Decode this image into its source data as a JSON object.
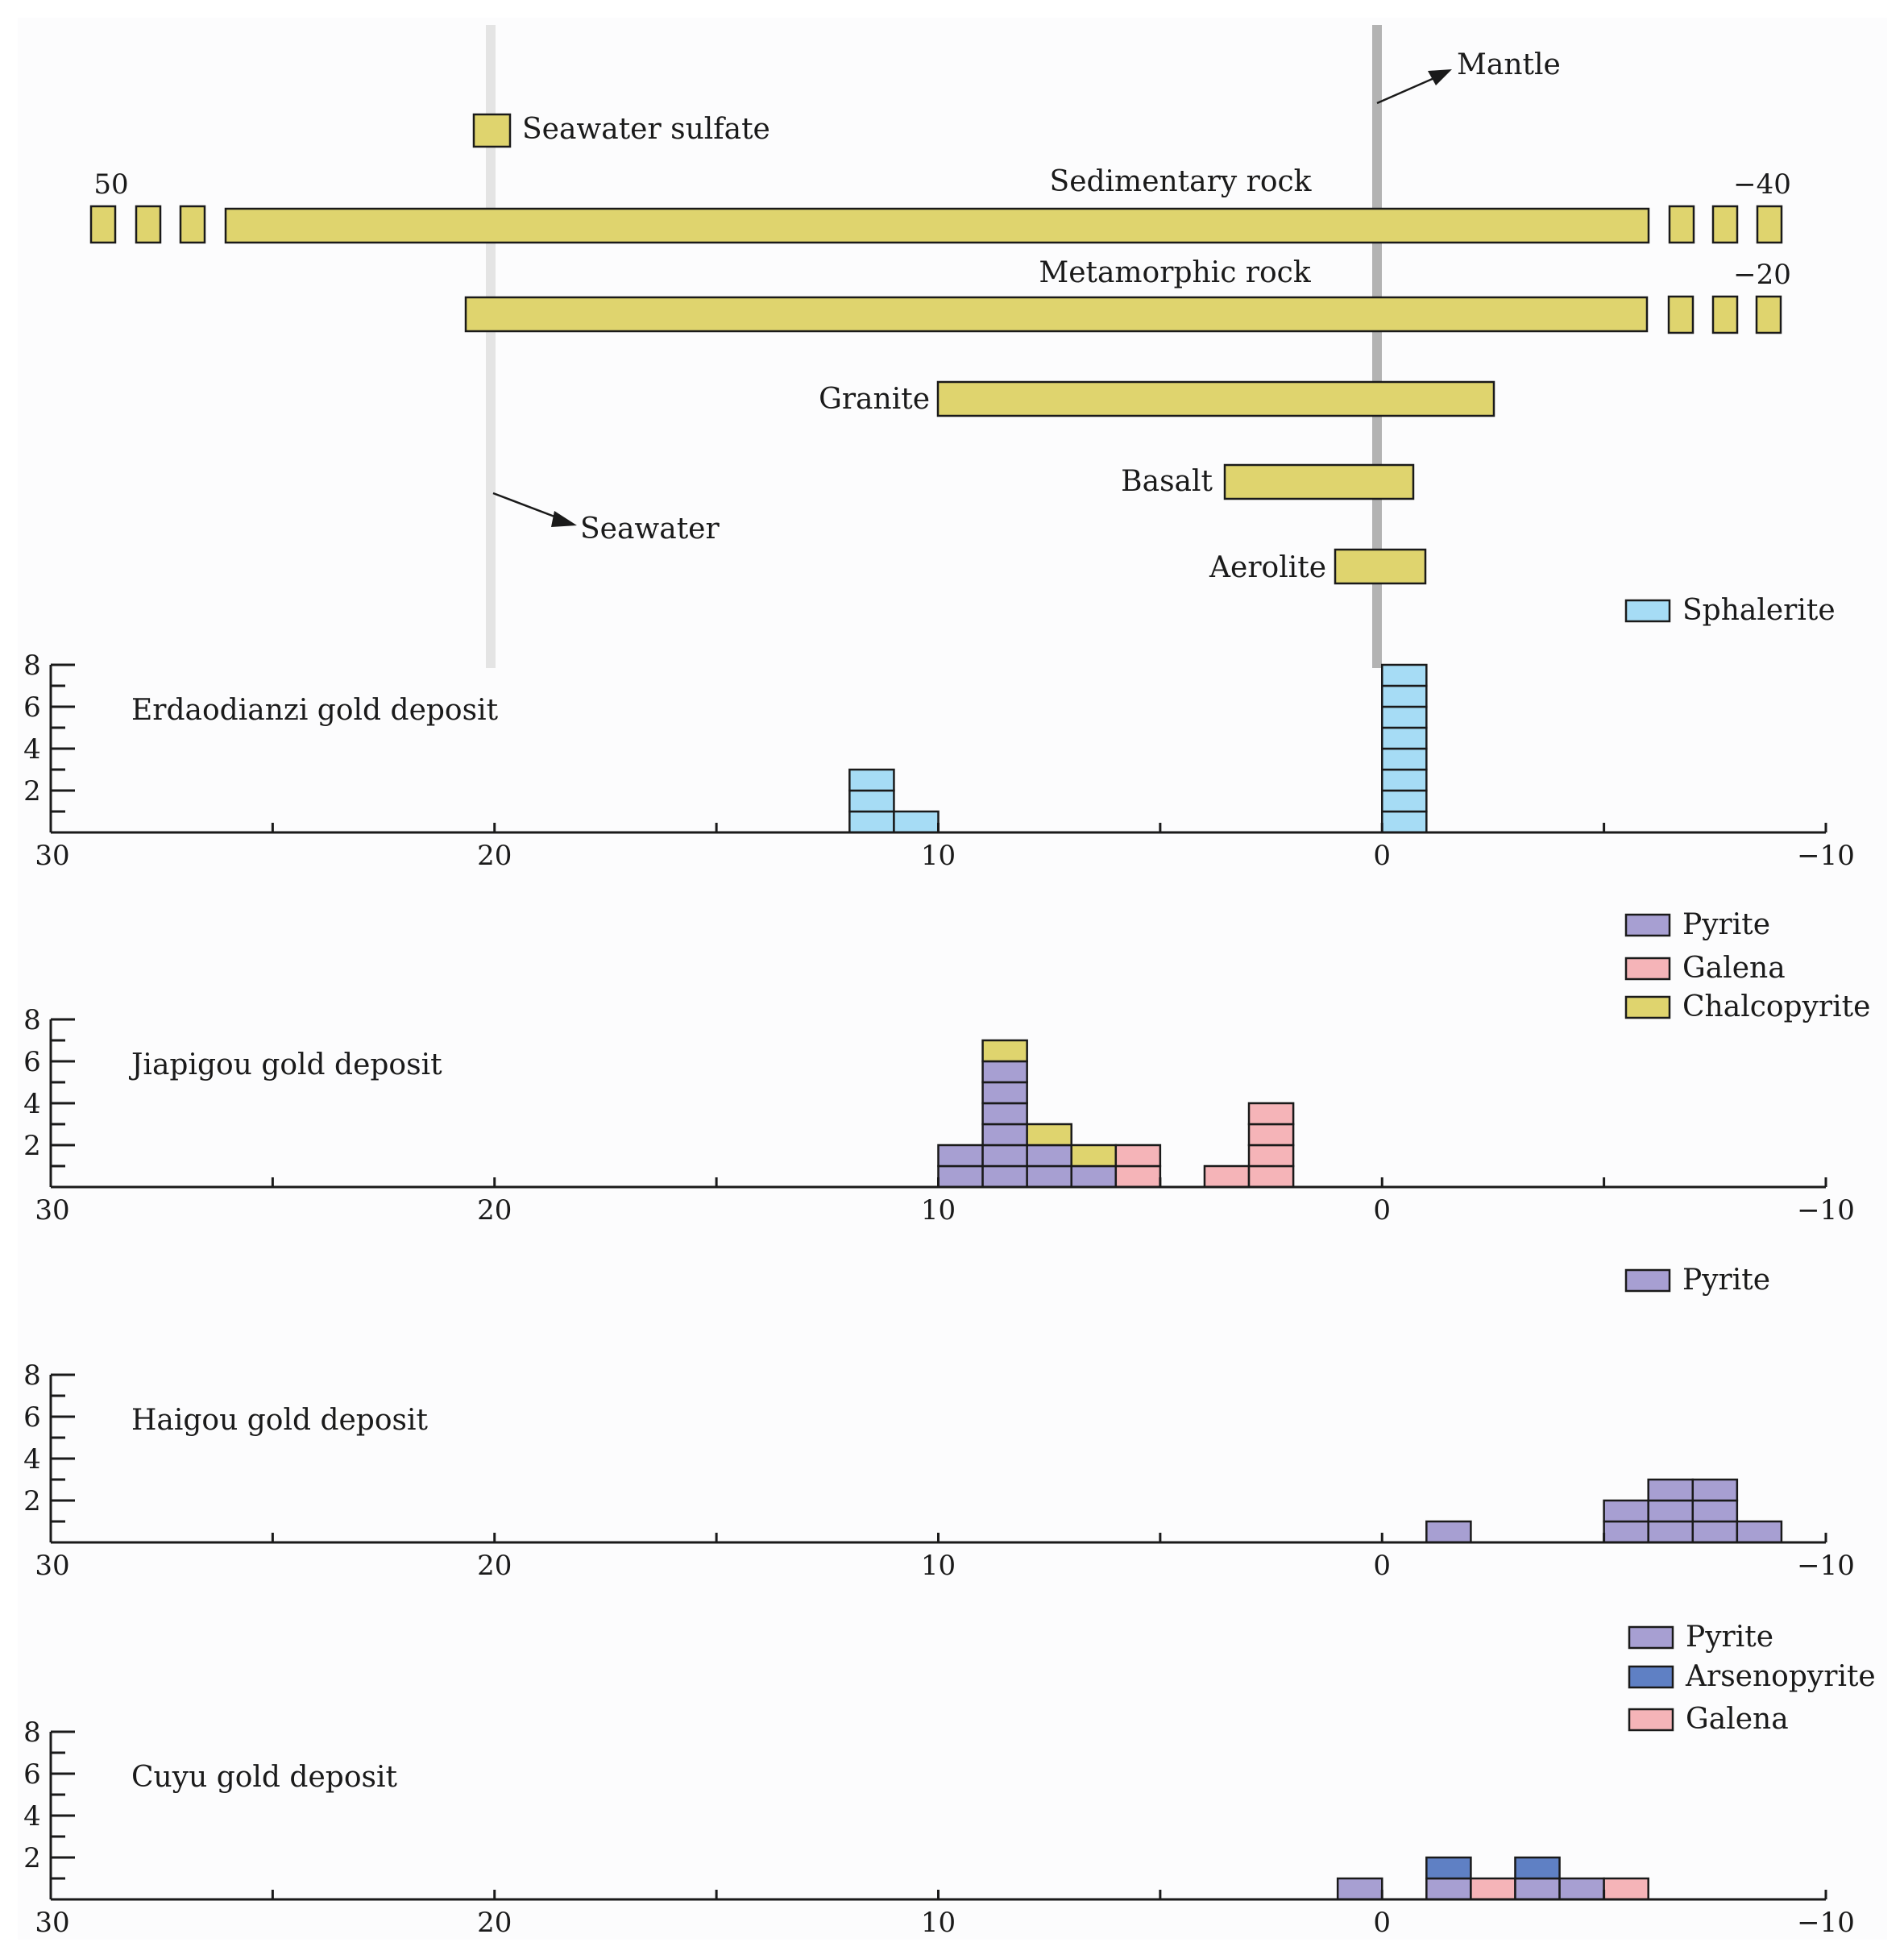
{
  "colors": {
    "background": "#fcfcfd",
    "source_bar": "#dfd46e",
    "sphalerite": "#a6dcf5",
    "pyrite": "#a79fd2",
    "galena": "#f5b4b8",
    "chalcopyrite": "#dfd46e",
    "arsenopyrite": "#5f80c4",
    "mantle_line": "#b3b3b3",
    "seawater_line": "#e4e4e4"
  },
  "reference_lines": {
    "mantle": {
      "label": "Mantle",
      "value": 0
    },
    "seawater": {
      "label": "Seawater",
      "value": 20
    }
  },
  "sources": {
    "seawater_sulfate": {
      "label": "Seawater sulfate"
    },
    "sedimentary": {
      "label": "Sedimentary rock",
      "left_value": "50",
      "right_value": "−40"
    },
    "metamorphic": {
      "label": "Metamorphic rock",
      "right_value": "−20"
    },
    "granite": {
      "label": "Granite",
      "range": [
        10,
        -2.5
      ]
    },
    "basalt": {
      "label": "Basalt",
      "range": [
        3.5,
        -0.7
      ]
    },
    "aerolite": {
      "label": "Aerolite",
      "range": [
        1,
        -1
      ]
    }
  },
  "chart_data": [
    {
      "type": "histogram",
      "title": "Erdaodianzi gold deposit",
      "xlim": [
        30,
        -10
      ],
      "ylim": [
        0,
        8
      ],
      "bin_width": 1,
      "x_ticks": [
        "30",
        "20",
        "10",
        "0",
        "−10"
      ],
      "y_ticks": [
        "2",
        "4",
        "6",
        "8"
      ],
      "legend": [
        {
          "key": "sphalerite",
          "label": "Sphalerite"
        }
      ],
      "stacks": [
        {
          "bin_start": 11,
          "blocks": [
            "sphalerite",
            "sphalerite",
            "sphalerite"
          ]
        },
        {
          "bin_start": 10,
          "blocks": [
            "sphalerite"
          ]
        },
        {
          "bin_start": -1,
          "blocks": [
            "sphalerite",
            "sphalerite",
            "sphalerite",
            "sphalerite",
            "sphalerite",
            "sphalerite",
            "sphalerite",
            "sphalerite"
          ]
        }
      ]
    },
    {
      "type": "histogram",
      "title": "Jiapigou gold deposit",
      "xlim": [
        30,
        -10
      ],
      "ylim": [
        0,
        8
      ],
      "bin_width": 1,
      "x_ticks": [
        "30",
        "20",
        "10",
        "0",
        "−10"
      ],
      "y_ticks": [
        "2",
        "4",
        "6",
        "8"
      ],
      "legend": [
        {
          "key": "pyrite",
          "label": "Pyrite"
        },
        {
          "key": "galena",
          "label": "Galena"
        },
        {
          "key": "chalcopyrite",
          "label": "Chalcopyrite"
        }
      ],
      "stacks": [
        {
          "bin_start": 9,
          "blocks": [
            "pyrite",
            "pyrite"
          ]
        },
        {
          "bin_start": 8,
          "blocks": [
            "pyrite",
            "pyrite",
            "pyrite",
            "pyrite",
            "pyrite",
            "pyrite",
            "chalcopyrite"
          ]
        },
        {
          "bin_start": 7,
          "blocks": [
            "pyrite",
            "pyrite",
            "chalcopyrite"
          ]
        },
        {
          "bin_start": 6,
          "blocks": [
            "pyrite",
            "chalcopyrite"
          ]
        },
        {
          "bin_start": 5,
          "blocks": [
            "galena",
            "galena"
          ]
        },
        {
          "bin_start": 3,
          "blocks": [
            "galena"
          ]
        },
        {
          "bin_start": 2,
          "blocks": [
            "galena",
            "galena",
            "galena",
            "galena"
          ]
        }
      ]
    },
    {
      "type": "histogram",
      "title": "Haigou gold deposit",
      "xlim": [
        30,
        -10
      ],
      "ylim": [
        0,
        8
      ],
      "bin_width": 1,
      "x_ticks": [
        "30",
        "20",
        "10",
        "0",
        "−10"
      ],
      "y_ticks": [
        "2",
        "4",
        "6",
        "8"
      ],
      "legend": [
        {
          "key": "pyrite",
          "label": "Pyrite"
        }
      ],
      "stacks": [
        {
          "bin_start": -2,
          "blocks": [
            "pyrite"
          ]
        },
        {
          "bin_start": -6,
          "blocks": [
            "pyrite",
            "pyrite"
          ]
        },
        {
          "bin_start": -7,
          "blocks": [
            "pyrite",
            "pyrite",
            "pyrite"
          ]
        },
        {
          "bin_start": -8,
          "blocks": [
            "pyrite",
            "pyrite",
            "pyrite"
          ]
        },
        {
          "bin_start": -9,
          "blocks": [
            "pyrite"
          ]
        }
      ]
    },
    {
      "type": "histogram",
      "title": "Cuyu gold deposit",
      "xlim": [
        30,
        -10
      ],
      "ylim": [
        0,
        8
      ],
      "bin_width": 1,
      "x_ticks": [
        "30",
        "20",
        "10",
        "0",
        "−10"
      ],
      "y_ticks": [
        "2",
        "4",
        "6",
        "8"
      ],
      "legend": [
        {
          "key": "pyrite",
          "label": "Pyrite"
        },
        {
          "key": "arsenopyrite",
          "label": "Arsenopyrite"
        },
        {
          "key": "galena",
          "label": "Galena"
        }
      ],
      "stacks": [
        {
          "bin_start": 0,
          "blocks": [
            "pyrite"
          ]
        },
        {
          "bin_start": -2,
          "blocks": [
            "pyrite",
            "arsenopyrite"
          ]
        },
        {
          "bin_start": -3,
          "blocks": [
            "galena"
          ]
        },
        {
          "bin_start": -4,
          "blocks": [
            "pyrite",
            "arsenopyrite"
          ]
        },
        {
          "bin_start": -5,
          "blocks": [
            "pyrite"
          ]
        },
        {
          "bin_start": -6,
          "blocks": [
            "galena"
          ]
        }
      ]
    }
  ]
}
